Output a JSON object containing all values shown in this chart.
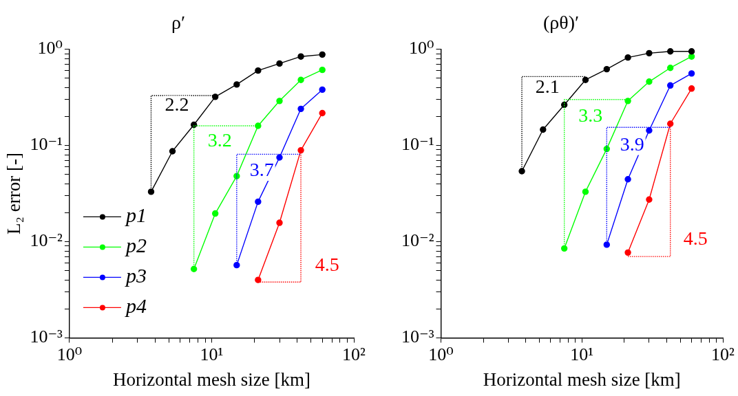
{
  "chart_data": [
    {
      "type": "line",
      "title": "ρ′",
      "xlabel": "Horizontal mesh size [km]",
      "ylabel": "L₂ error [-]",
      "log": "xy",
      "marker": "circle",
      "legend": "bottom left",
      "grid": false,
      "xlim": [
        1,
        100
      ],
      "xticks": [
        {
          "value": 1,
          "label": "10⁰"
        },
        {
          "value": 2,
          "label": null
        },
        {
          "value": 3,
          "label": null
        },
        {
          "value": 4,
          "label": null
        },
        {
          "value": 5,
          "label": null
        },
        {
          "value": 6,
          "label": null
        },
        {
          "value": 7,
          "label": null
        },
        {
          "value": 8,
          "label": null
        },
        {
          "value": 9,
          "label": null
        },
        {
          "value": 10,
          "label": "10¹"
        },
        {
          "value": 20,
          "label": null
        },
        {
          "value": 30,
          "label": null
        },
        {
          "value": 40,
          "label": null
        },
        {
          "value": 50,
          "label": null
        },
        {
          "value": 60,
          "label": null
        },
        {
          "value": 70,
          "label": null
        },
        {
          "value": 80,
          "label": null
        },
        {
          "value": 90,
          "label": null
        },
        {
          "value": 100,
          "label": "10²"
        }
      ],
      "ylim": [
        0.001,
        1
      ],
      "yticks": [
        {
          "value": 0.001,
          "label": "10⁻³"
        },
        {
          "value": 0.002,
          "label": null
        },
        {
          "value": 0.003,
          "label": null
        },
        {
          "value": 0.004,
          "label": null
        },
        {
          "value": 0.005,
          "label": null
        },
        {
          "value": 0.006,
          "label": null
        },
        {
          "value": 0.007,
          "label": null
        },
        {
          "value": 0.008,
          "label": null
        },
        {
          "value": 0.009,
          "label": null
        },
        {
          "value": 0.01,
          "label": "10⁻²"
        },
        {
          "value": 0.02,
          "label": null
        },
        {
          "value": 0.03,
          "label": null
        },
        {
          "value": 0.04,
          "label": null
        },
        {
          "value": 0.05,
          "label": null
        },
        {
          "value": 0.06,
          "label": null
        },
        {
          "value": 0.07,
          "label": null
        },
        {
          "value": 0.08,
          "label": null
        },
        {
          "value": 0.09,
          "label": null
        },
        {
          "value": 0.1,
          "label": "10⁻¹"
        },
        {
          "value": 0.2,
          "label": null
        },
        {
          "value": 0.3,
          "label": null
        },
        {
          "value": 0.4,
          "label": null
        },
        {
          "value": 0.5,
          "label": null
        },
        {
          "value": 0.6,
          "label": null
        },
        {
          "value": 0.7,
          "label": null
        },
        {
          "value": 0.8,
          "label": null
        },
        {
          "value": 0.9,
          "label": null
        },
        {
          "value": 1,
          "label": "10⁰"
        }
      ],
      "series": [
        {
          "name": "p1",
          "color": "#000000",
          "x": [
            3.75,
            5.3,
            7.5,
            10.6,
            15,
            21.2,
            30,
            42.4,
            60
          ],
          "values": [
            0.033,
            0.087,
            0.164,
            0.32,
            0.43,
            0.6,
            0.71,
            0.84,
            0.88
          ]
        },
        {
          "name": "p2",
          "color": "#00ff00",
          "x": [
            7.5,
            10.6,
            15,
            21.2,
            30,
            42.4,
            60
          ],
          "values": [
            0.0052,
            0.0196,
            0.048,
            0.16,
            0.29,
            0.48,
            0.61
          ]
        },
        {
          "name": "p3",
          "color": "#0000ff",
          "x": [
            15,
            21.2,
            30,
            42.4,
            60
          ],
          "values": [
            0.0057,
            0.026,
            0.075,
            0.24,
            0.38
          ]
        },
        {
          "name": "p4",
          "color": "#ff0000",
          "x": [
            21.2,
            30,
            42.4,
            60
          ],
          "values": [
            0.004,
            0.0157,
            0.089,
            0.217
          ]
        },
        {
          "color": "#000000",
          "line_style": "dotted",
          "marker": "none",
          "x": [
            3.75,
            3.75,
            10.6
          ],
          "values": [
            0.033,
            0.33,
            0.33
          ]
        },
        {
          "color": "#00ff00",
          "line_style": "dotted",
          "marker": "none",
          "x": [
            7.5,
            7.5,
            21.2
          ],
          "values": [
            0.0052,
            0.16,
            0.16
          ]
        },
        {
          "color": "#0000ff",
          "line_style": "dotted",
          "marker": "none",
          "x": [
            15,
            15,
            42.4
          ],
          "values": [
            0.0057,
            0.081,
            0.081
          ]
        },
        {
          "color": "#ff0000",
          "line_style": "dotted",
          "marker": "none",
          "x": [
            21.2,
            42.4,
            42.4
          ],
          "values": [
            0.0038,
            0.0038,
            0.089
          ]
        }
      ],
      "annotations": [
        {
          "text": "2.2",
          "x": 5.7,
          "y": 0.26
        },
        {
          "text": "3.2",
          "x": 11.4,
          "y": 0.11
        },
        {
          "text": "3.7",
          "x": 22.5,
          "y": 0.054
        },
        {
          "text": "4.5",
          "x": 65,
          "y": 0.0056
        }
      ]
    },
    {
      "type": "line",
      "title": "(ρθ)′",
      "xlabel": "Horizontal mesh size [km]",
      "log": "xy",
      "marker": "circle",
      "grid": false,
      "xlim": [
        1,
        100
      ],
      "xticks": [
        {
          "value": 1,
          "label": "10⁰"
        },
        {
          "value": 2,
          "label": null
        },
        {
          "value": 3,
          "label": null
        },
        {
          "value": 4,
          "label": null
        },
        {
          "value": 5,
          "label": null
        },
        {
          "value": 6,
          "label": null
        },
        {
          "value": 7,
          "label": null
        },
        {
          "value": 8,
          "label": null
        },
        {
          "value": 9,
          "label": null
        },
        {
          "value": 10,
          "label": "10¹"
        },
        {
          "value": 20,
          "label": null
        },
        {
          "value": 30,
          "label": null
        },
        {
          "value": 40,
          "label": null
        },
        {
          "value": 50,
          "label": null
        },
        {
          "value": 60,
          "label": null
        },
        {
          "value": 70,
          "label": null
        },
        {
          "value": 80,
          "label": null
        },
        {
          "value": 90,
          "label": null
        },
        {
          "value": 100,
          "label": "10²"
        }
      ],
      "ylim": [
        0.001,
        1
      ],
      "yticks": [
        {
          "value": 0.001,
          "label": "10⁻³"
        },
        {
          "value": 0.002,
          "label": null
        },
        {
          "value": 0.003,
          "label": null
        },
        {
          "value": 0.004,
          "label": null
        },
        {
          "value": 0.005,
          "label": null
        },
        {
          "value": 0.006,
          "label": null
        },
        {
          "value": 0.007,
          "label": null
        },
        {
          "value": 0.008,
          "label": null
        },
        {
          "value": 0.009,
          "label": null
        },
        {
          "value": 0.01,
          "label": "10⁻²"
        },
        {
          "value": 0.02,
          "label": null
        },
        {
          "value": 0.03,
          "label": null
        },
        {
          "value": 0.04,
          "label": null
        },
        {
          "value": 0.05,
          "label": null
        },
        {
          "value": 0.06,
          "label": null
        },
        {
          "value": 0.07,
          "label": null
        },
        {
          "value": 0.08,
          "label": null
        },
        {
          "value": 0.09,
          "label": null
        },
        {
          "value": 0.1,
          "label": "10⁻¹"
        },
        {
          "value": 0.2,
          "label": null
        },
        {
          "value": 0.3,
          "label": null
        },
        {
          "value": 0.4,
          "label": null
        },
        {
          "value": 0.5,
          "label": null
        },
        {
          "value": 0.6,
          "label": null
        },
        {
          "value": 0.7,
          "label": null
        },
        {
          "value": 0.8,
          "label": null
        },
        {
          "value": 0.9,
          "label": null
        },
        {
          "value": 1,
          "label": "10⁰"
        }
      ],
      "series": [
        {
          "color": "#000000",
          "x": [
            3.75,
            5.3,
            7.5,
            10.6,
            15,
            21.2,
            30,
            42.4,
            60
          ],
          "values": [
            0.054,
            0.146,
            0.264,
            0.48,
            0.62,
            0.82,
            0.91,
            0.95,
            0.95
          ]
        },
        {
          "color": "#00ff00",
          "x": [
            7.5,
            10.6,
            15,
            21.2,
            30,
            42.4,
            60
          ],
          "values": [
            0.0085,
            0.033,
            0.092,
            0.29,
            0.46,
            0.64,
            0.84
          ]
        },
        {
          "color": "#0000ff",
          "x": [
            15,
            21.2,
            30,
            42.4,
            60
          ],
          "values": [
            0.0093,
            0.0445,
            0.143,
            0.42,
            0.56
          ]
        },
        {
          "color": "#ff0000",
          "x": [
            21.2,
            30,
            42.4,
            60
          ],
          "values": [
            0.0077,
            0.0274,
            0.168,
            0.39
          ]
        },
        {
          "color": "#000000",
          "line_style": "dotted",
          "marker": "none",
          "x": [
            3.75,
            3.75,
            10.6
          ],
          "values": [
            0.054,
            0.52,
            0.52
          ]
        },
        {
          "color": "#00ff00",
          "line_style": "dotted",
          "marker": "none",
          "x": [
            7.5,
            7.5,
            21.2
          ],
          "values": [
            0.0085,
            0.3,
            0.3
          ]
        },
        {
          "color": "#0000ff",
          "line_style": "dotted",
          "marker": "none",
          "x": [
            15,
            15,
            42.4
          ],
          "values": [
            0.0093,
            0.154,
            0.154
          ]
        },
        {
          "color": "#ff0000",
          "line_style": "dotted",
          "marker": "none",
          "x": [
            21.2,
            42.4,
            42.4
          ],
          "values": [
            0.007,
            0.007,
            0.168
          ]
        }
      ],
      "annotations": [
        {
          "text": "2.1",
          "x": 5.7,
          "y": 0.4
        },
        {
          "text": "3.3",
          "x": 11.5,
          "y": 0.2
        },
        {
          "text": "3.9",
          "x": 22.7,
          "y": 0.1
        },
        {
          "text": "4.5",
          "x": 64,
          "y": 0.0104
        }
      ]
    }
  ]
}
